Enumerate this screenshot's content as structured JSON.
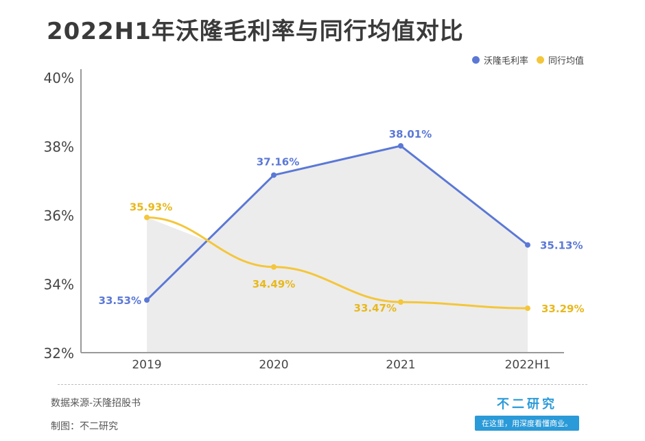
{
  "title": "2022H1年沃隆毛利率与同行均值对比",
  "colors": {
    "wolong": "#5b78d6",
    "peer": "#f4c63a",
    "fill": "#ececec",
    "axis": "#999999"
  },
  "chart_data": {
    "type": "line",
    "categories": [
      "2019",
      "2020",
      "2021",
      "2022H1"
    ],
    "series": [
      {
        "name": "沃隆毛利率",
        "values": [
          33.53,
          37.16,
          38.01,
          35.13
        ],
        "labels": [
          "33.53%",
          "37.16%",
          "38.01%",
          "35.13%"
        ]
      },
      {
        "name": "同行均值",
        "values": [
          35.93,
          34.49,
          33.47,
          33.29
        ],
        "labels": [
          "35.93%",
          "34.49%",
          "33.47%",
          "33.29%"
        ]
      }
    ],
    "yticks": [
      "32%",
      "34%",
      "36%",
      "38%",
      "40%"
    ],
    "ylim": [
      32,
      40
    ],
    "grid": false,
    "legend": "top-right"
  },
  "footer": {
    "source": "数据来源-沃隆招股书",
    "author": "制图：不二研究"
  },
  "brand": {
    "name": "不二研究",
    "slogan": "在这里，用深度看懂商业。"
  }
}
